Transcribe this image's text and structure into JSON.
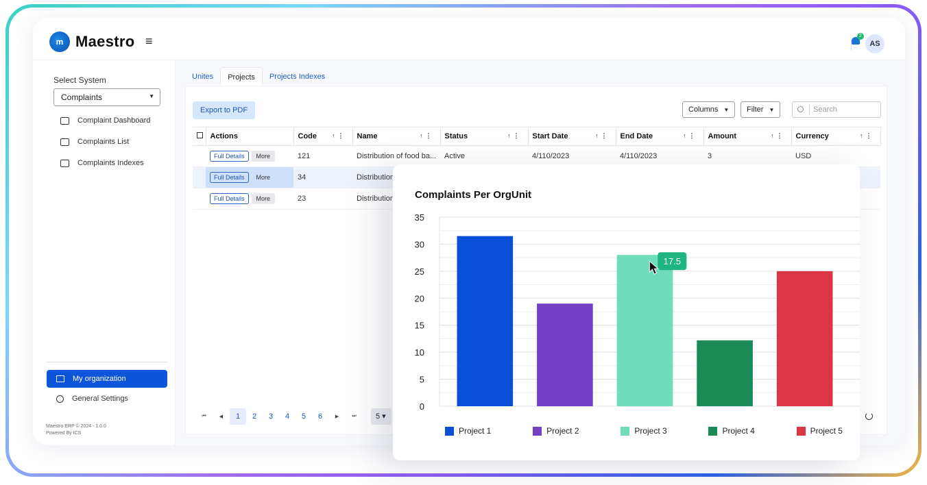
{
  "app": {
    "name": "Maestro",
    "user_initials": "AS",
    "notification_count": "2"
  },
  "sidebar": {
    "select_label": "Select System",
    "selected_system": "Complaints",
    "items": [
      {
        "label": "Complaint Dashboard",
        "icon": "dashboard-icon"
      },
      {
        "label": "Complaints List",
        "icon": "message-icon"
      },
      {
        "label": "Complaints Indexes",
        "icon": "index-icon"
      }
    ],
    "my_org": "My organization",
    "general_settings": "General Settings",
    "footer_line1": "Maestro ERP © 2024 - 1.0.0",
    "footer_line2": "Powered By ICS"
  },
  "tabs": [
    {
      "label": "Unites"
    },
    {
      "label": "Projects"
    },
    {
      "label": "Projects Indexes"
    }
  ],
  "toolbar": {
    "export": "Export to PDF",
    "columns": "Columns",
    "filter": "Filter",
    "search_placeholder": "Search"
  },
  "table": {
    "headers": [
      "Actions",
      "Code",
      "Name",
      "Status",
      "Start Date",
      "End Date",
      "Amount",
      "Currency"
    ],
    "full_details": "Full Details",
    "more": "More",
    "rows": [
      {
        "code": "121",
        "name": "Distribution of food ba...",
        "status": "Active",
        "start": "4/110/2023",
        "end": "4/110/2023",
        "amount": "3",
        "currency": "USD"
      },
      {
        "code": "34",
        "name": "Distribution",
        "status": "",
        "start": "",
        "end": "",
        "amount": "",
        "currency": ""
      },
      {
        "code": "23",
        "name": "Distribution",
        "status": "",
        "start": "",
        "end": "",
        "amount": "",
        "currency": ""
      }
    ]
  },
  "pager": {
    "pages": [
      "1",
      "2",
      "3",
      "4",
      "5",
      "6"
    ],
    "current": "1",
    "page_size": "5"
  },
  "chart_data": {
    "type": "bar",
    "title": "Complaints Per OrgUnit",
    "categories": [
      "Project 1",
      "Project 2",
      "Project 3",
      "Project 4",
      "Project 5"
    ],
    "values": [
      31.5,
      19,
      28,
      12.2,
      25
    ],
    "colors": [
      "#0b4fd6",
      "#7541c4",
      "#6fdcbb",
      "#1a8a56",
      "#dc3545"
    ],
    "ylim": [
      0,
      35
    ],
    "yticks": [
      0,
      5,
      10,
      15,
      20,
      25,
      30,
      35
    ],
    "tooltip": {
      "text": "17.5",
      "color": "#1fb580"
    },
    "legend_position": "bottom"
  }
}
